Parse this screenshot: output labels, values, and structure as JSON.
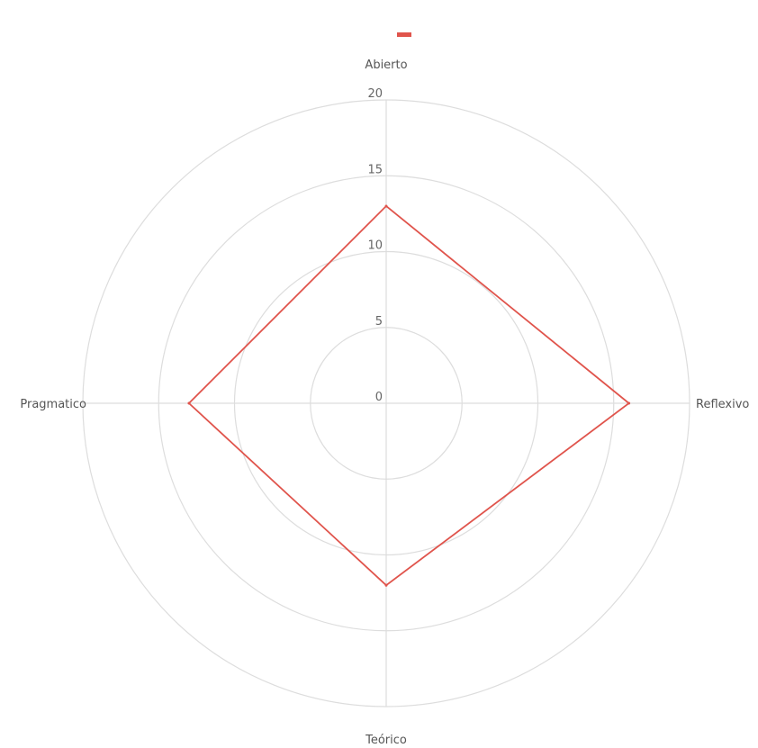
{
  "chart_data": {
    "type": "radar",
    "categories": [
      "Abierto",
      "Reflexivo",
      "Teórico",
      "Pragmatico"
    ],
    "series": [
      {
        "values": [
          13,
          16,
          12,
          13
        ],
        "color": "#e0544c"
      }
    ],
    "rlim": [
      0,
      20
    ],
    "ticks": [
      "0",
      "5",
      "10",
      "15",
      "20"
    ],
    "tick_values": [
      0,
      5,
      10,
      15,
      20
    ],
    "grid": true,
    "grid_color": "#dddddd",
    "legend": "top-center"
  }
}
